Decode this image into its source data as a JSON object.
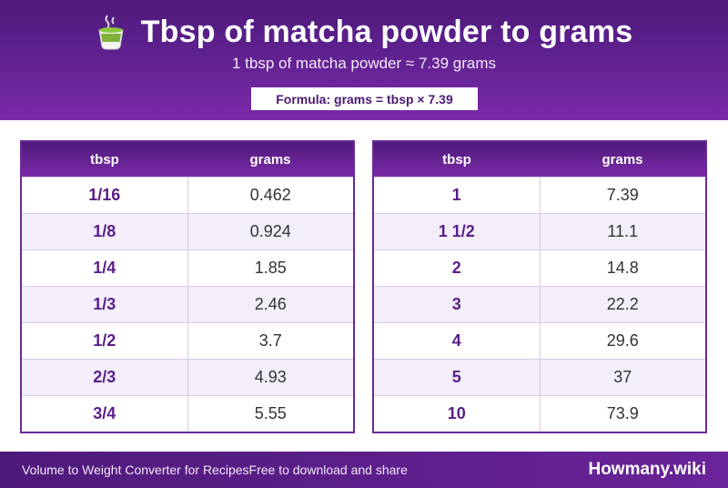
{
  "header": {
    "title": "Tbsp of matcha powder to grams",
    "subtitle": "1 tbsp of matcha powder ≈ 7.39 grams",
    "formula": "Formula: grams = tbsp × 7.39",
    "icon": "matcha-cup-icon"
  },
  "colors": {
    "primary": "#5f2190",
    "accent": "#7b2aa8",
    "row_alt": "#f3eefa"
  },
  "table_left": {
    "headers": [
      "tbsp",
      "grams"
    ],
    "rows": [
      {
        "tbsp": "1/16",
        "grams": "0.462"
      },
      {
        "tbsp": "1/8",
        "grams": "0.924"
      },
      {
        "tbsp": "1/4",
        "grams": "1.85"
      },
      {
        "tbsp": "1/3",
        "grams": "2.46"
      },
      {
        "tbsp": "1/2",
        "grams": "3.7"
      },
      {
        "tbsp": "2/3",
        "grams": "4.93"
      },
      {
        "tbsp": "3/4",
        "grams": "5.55"
      }
    ]
  },
  "table_right": {
    "headers": [
      "tbsp",
      "grams"
    ],
    "rows": [
      {
        "tbsp": "1",
        "grams": "7.39"
      },
      {
        "tbsp": "1 1/2",
        "grams": "11.1"
      },
      {
        "tbsp": "2",
        "grams": "14.8"
      },
      {
        "tbsp": "3",
        "grams": "22.2"
      },
      {
        "tbsp": "4",
        "grams": "29.6"
      },
      {
        "tbsp": "5",
        "grams": "37"
      },
      {
        "tbsp": "10",
        "grams": "73.9"
      }
    ]
  },
  "footer": {
    "left_text_1": "Volume to Weight Converter for Recipes",
    "left_text_2": "Free to download and share",
    "brand": "Howmany.wiki"
  }
}
